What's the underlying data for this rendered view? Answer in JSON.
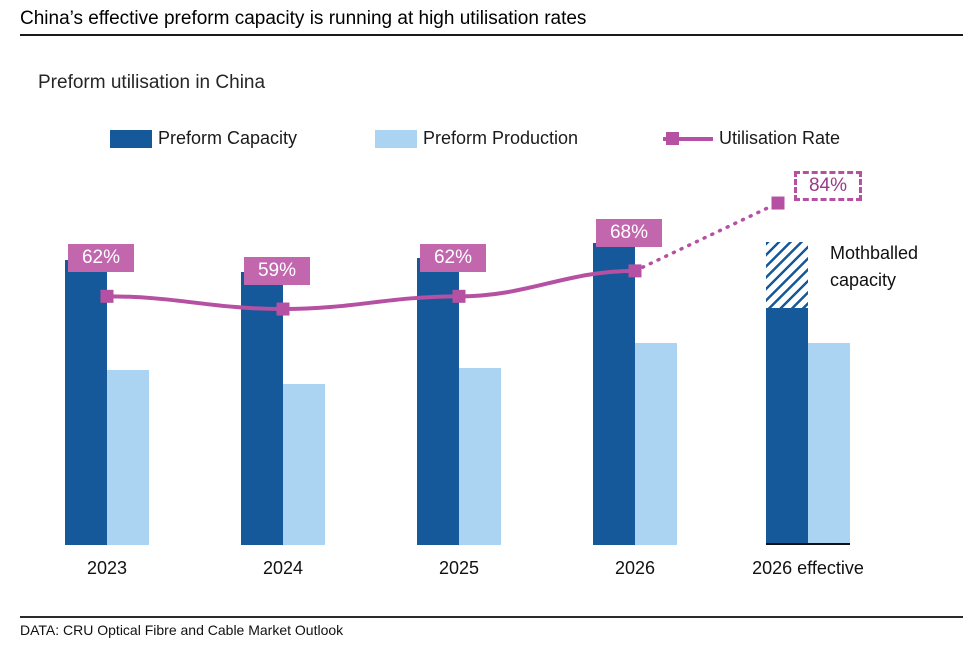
{
  "header": {
    "title": "China’s effective preform capacity is running at high utilisation rates"
  },
  "footer": {
    "source": "DATA: CRU Optical Fibre and Cable Market Outlook"
  },
  "colors": {
    "capacity": "#15599a",
    "production": "#abd4f2",
    "line": "#b650a2",
    "label_bg": "#c266ae",
    "forecast_text": "#993a88"
  },
  "chart_data": {
    "type": "bar",
    "title": "Preform utilisation in China",
    "categories": [
      "2023",
      "2024",
      "2025",
      "2026",
      "2026 effective"
    ],
    "units": "relative index (no value axis shown in chart)",
    "legend_position": "top",
    "grid": false,
    "series": [
      {
        "name": "Preform Capacity",
        "type": "bar",
        "color_key": "capacity",
        "values": [
          285,
          273,
          287,
          302,
          237
        ],
        "mothballed": [
          0,
          0,
          0,
          0,
          66
        ]
      },
      {
        "name": "Preform Production",
        "type": "bar",
        "color_key": "production",
        "values": [
          175,
          161,
          177,
          202,
          202
        ]
      },
      {
        "name": "Utilisation Rate",
        "type": "line",
        "color_key": "line",
        "values": [
          62,
          59,
          62,
          68,
          84
        ],
        "labels": [
          "62%",
          "59%",
          "62%",
          "68%",
          "84%"
        ],
        "dashed_from_index": 3
      }
    ],
    "annotations": {
      "mothballed_label": "Mothballed capacity"
    }
  }
}
